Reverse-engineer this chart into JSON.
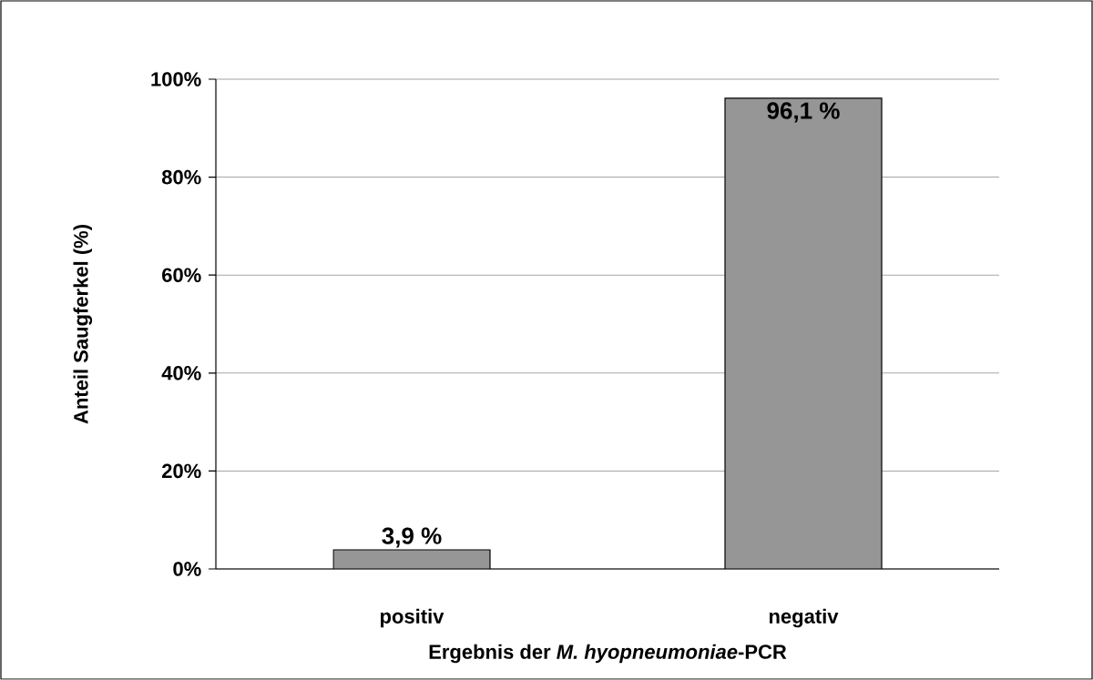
{
  "chart_data": {
    "type": "bar",
    "xlabel": "Ergebnis der *M. hyopneumoniae*-PCR",
    "ylabel": "Anteil Saugferkel (%)",
    "categories": [
      "positiv",
      "negativ"
    ],
    "values": [
      3.9,
      96.1
    ],
    "value_labels": [
      "3,9 %",
      "96,1 %"
    ],
    "color": "#969696",
    "ylim": [
      0,
      100
    ],
    "yticks": [
      {
        "value": 0,
        "label": "0%"
      },
      {
        "value": 20,
        "label": "20%"
      },
      {
        "value": 40,
        "label": "40%"
      },
      {
        "value": 60,
        "label": "60%"
      },
      {
        "value": 80,
        "label": "80%"
      },
      {
        "value": 100,
        "label": "100%"
      }
    ],
    "grid": "y"
  }
}
